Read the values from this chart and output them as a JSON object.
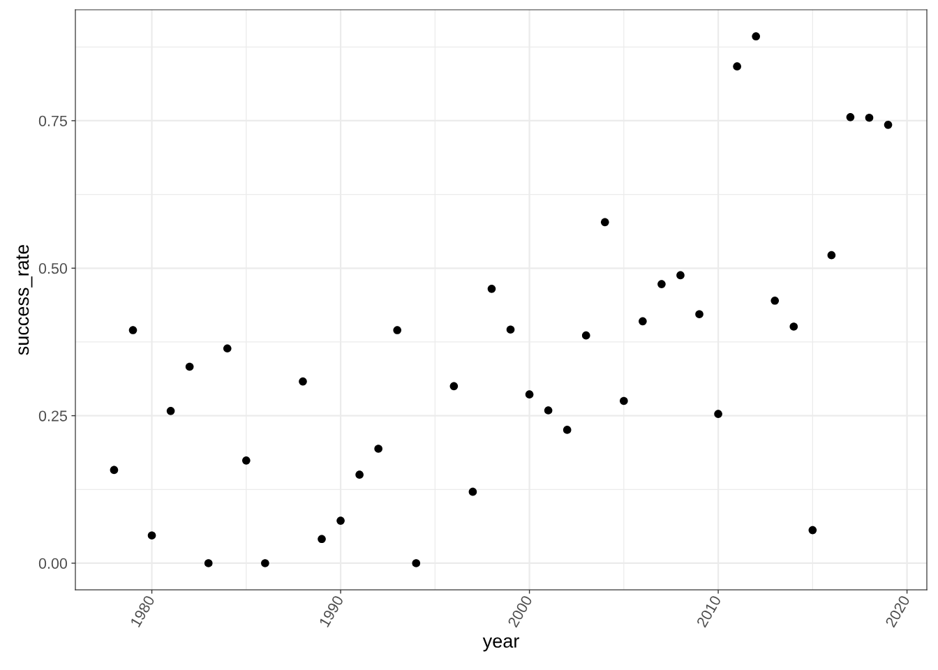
{
  "chart_data": {
    "type": "scatter",
    "xlabel": "year",
    "ylabel": "success_rate",
    "x": [
      1978,
      1979,
      1980,
      1981,
      1982,
      1983,
      1984,
      1985,
      1986,
      1988,
      1989,
      1990,
      1991,
      1992,
      1993,
      1994,
      1996,
      1997,
      1998,
      1999,
      2000,
      2001,
      2002,
      2003,
      2004,
      2005,
      2006,
      2007,
      2008,
      2009,
      2010,
      2011,
      2012,
      2013,
      2014,
      2015,
      2016,
      2017,
      2018,
      2019
    ],
    "series": [
      {
        "color": "#000000",
        "values": [
          0.158,
          0.395,
          0.047,
          0.258,
          0.333,
          0,
          0.364,
          0.174,
          0,
          0.308,
          0.041,
          0.072,
          0.15,
          0.194,
          0.395,
          0,
          0.3,
          0.121,
          0.465,
          0.396,
          0.286,
          0.259,
          0.226,
          0.386,
          0.578,
          0.275,
          0.41,
          0.473,
          0.488,
          0.422,
          0.253,
          0.842,
          0.893,
          0.445,
          0.401,
          0.056,
          0.522,
          0.756,
          0.755,
          0.743
        ]
      }
    ],
    "xlim": [
      1975.95,
      2021.05
    ],
    "ylim": [
      -0.045,
      0.938
    ],
    "xticks": [
      1980,
      1990,
      2000,
      2010,
      2020
    ],
    "yticks": [
      {
        "value": 0,
        "label": "0.00"
      },
      0.25,
      {
        "value": 0.5,
        "label": "0.50"
      },
      0.75
    ],
    "grid": true,
    "marker": "circle"
  }
}
